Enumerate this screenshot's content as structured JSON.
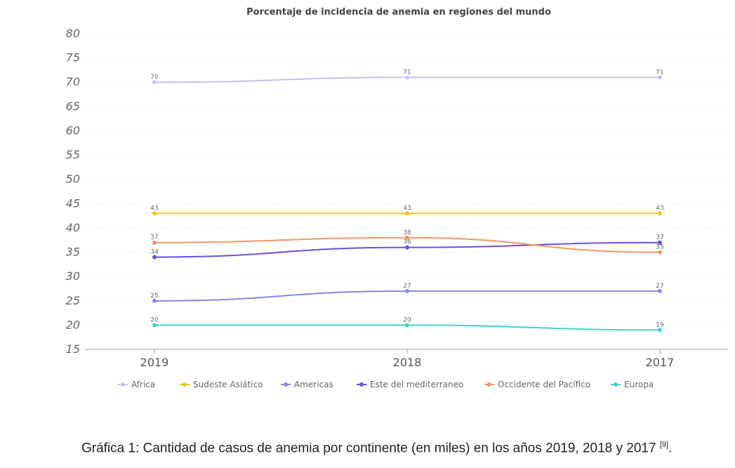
{
  "chart_data": {
    "type": "line",
    "title": "Porcentaje de incidencia de anemia en regiones del mundo",
    "categories": [
      "2019",
      "2018",
      "2017"
    ],
    "ylim": [
      15,
      80
    ],
    "yticks": [
      15,
      20,
      25,
      30,
      35,
      40,
      45,
      50,
      55,
      60,
      65,
      70,
      75,
      80
    ],
    "grid": true,
    "legend_position": "bottom",
    "series": [
      {
        "name": "Africa",
        "color": "#c3c3f0",
        "values": [
          70,
          71,
          71
        ]
      },
      {
        "name": "Sudeste Asiático",
        "color": "#f5c518",
        "values": [
          43,
          43,
          43
        ]
      },
      {
        "name": "Americas",
        "color": "#8a86ec",
        "values": [
          25,
          27,
          27
        ]
      },
      {
        "name": "Este del mediterraneo",
        "color": "#6a4fe0",
        "values": [
          34,
          36,
          37
        ]
      },
      {
        "name": "Occidente del Pacífico",
        "color": "#f2966a",
        "values": [
          37,
          38,
          35
        ]
      },
      {
        "name": "Europa",
        "color": "#3fd3c4",
        "values": [
          20,
          20,
          19
        ]
      }
    ]
  },
  "caption": {
    "text": "Gráfica 1: Cantidad de casos de anemia por continente (en miles) en los años 2019, 2018 y 2017",
    "ref": "[9]",
    "end": "."
  }
}
